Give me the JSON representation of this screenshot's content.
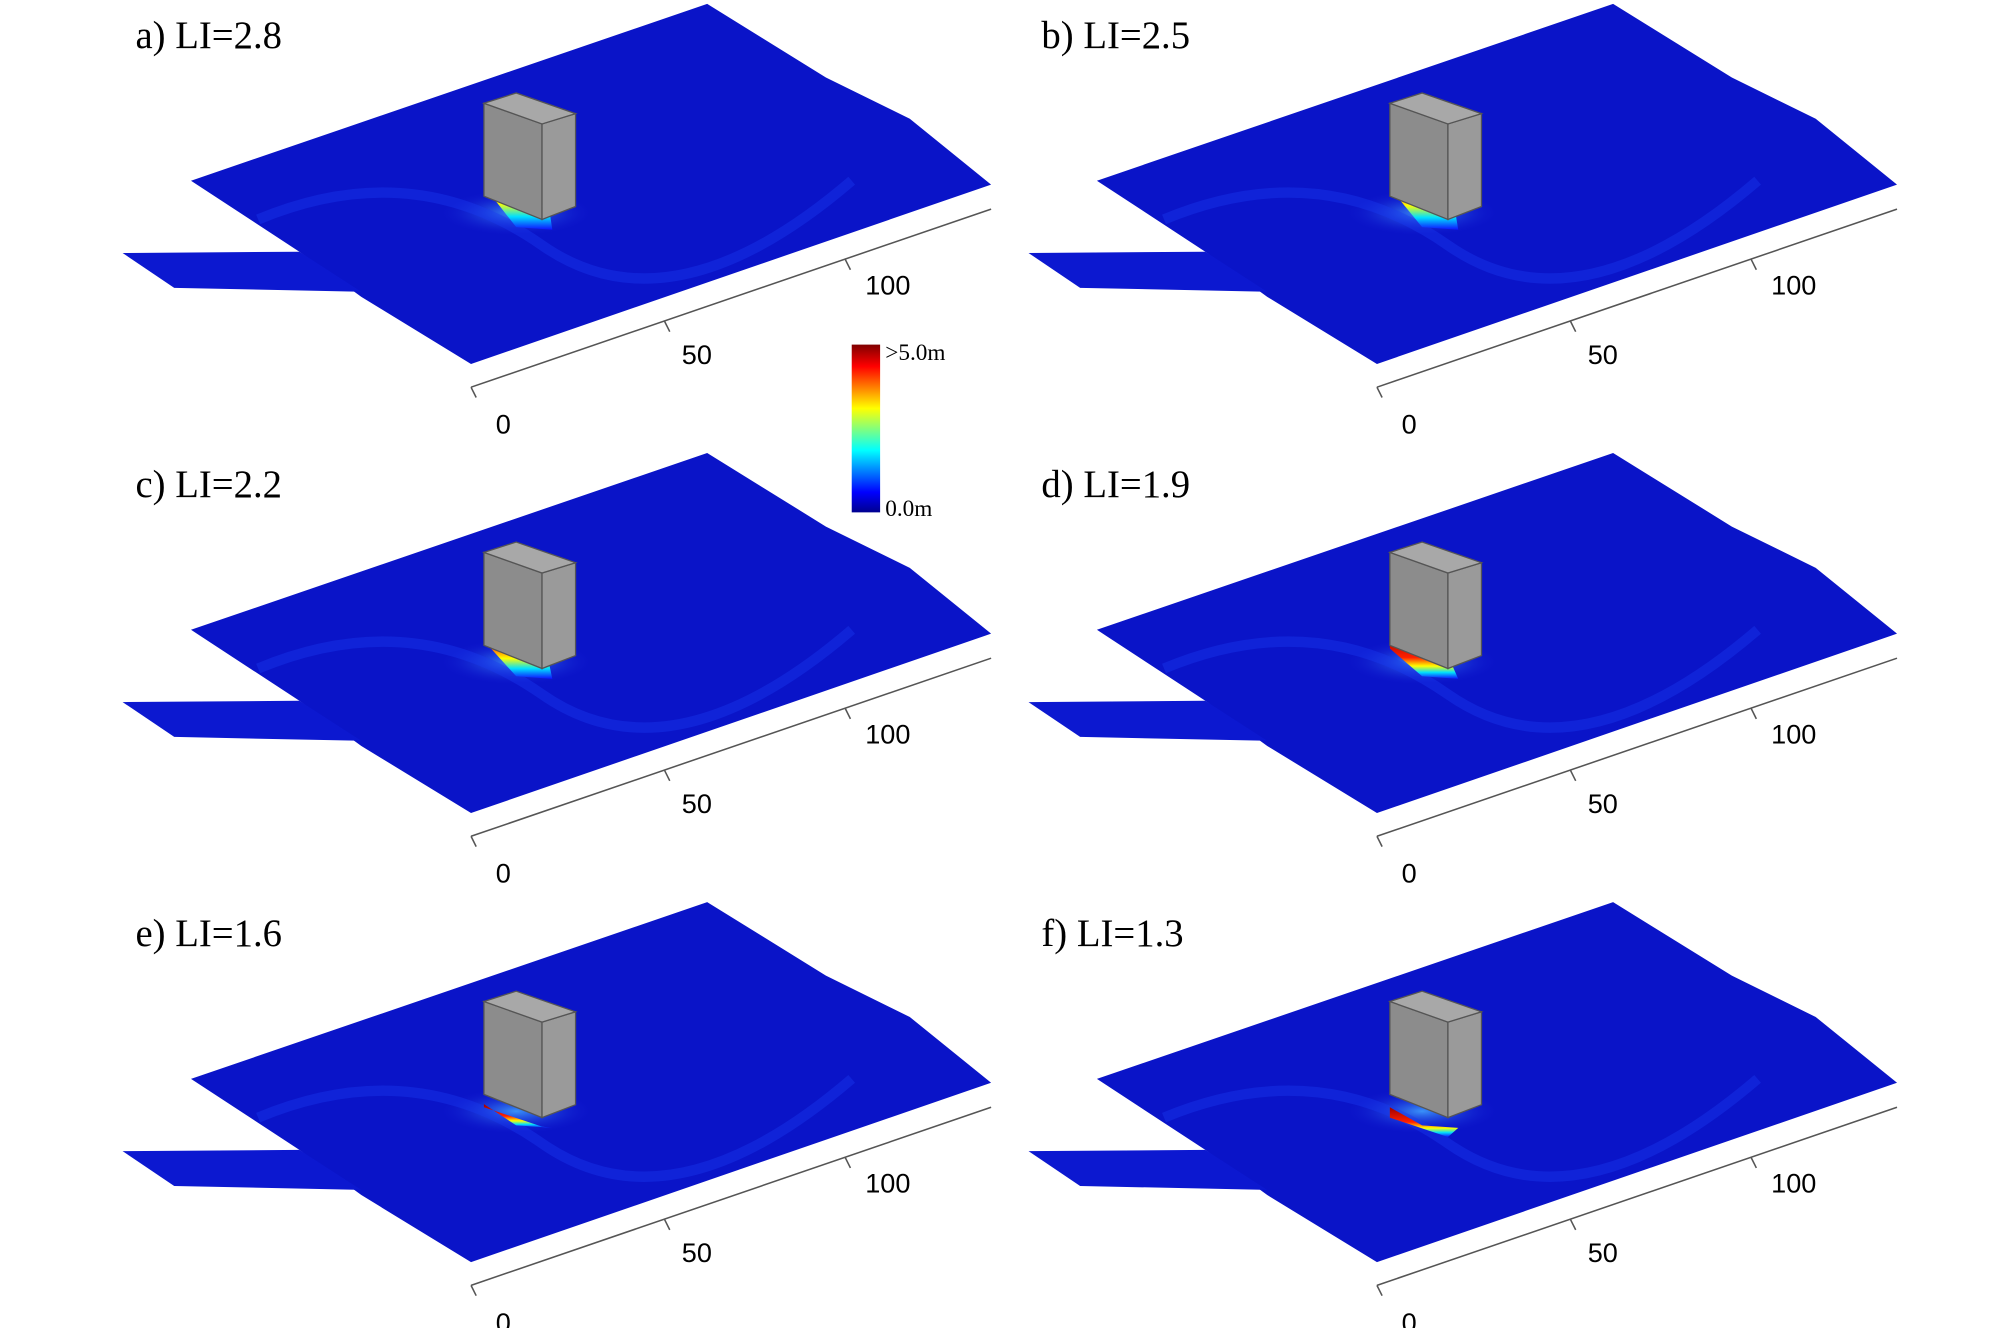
{
  "panels": [
    {
      "label": "a) LI=2.8",
      "ticks": [
        "0",
        "50",
        "100"
      ]
    },
    {
      "label": "b) LI=2.5",
      "ticks": [
        "0",
        "50",
        "100"
      ]
    },
    {
      "label": "c) LI=2.2",
      "ticks": [
        "0",
        "50",
        "100"
      ]
    },
    {
      "label": "d) LI=1.9",
      "ticks": [
        "0",
        "50",
        "100"
      ]
    },
    {
      "label": "e) LI=1.6",
      "ticks": [
        "0",
        "50",
        "100"
      ]
    },
    {
      "label": "f) LI=1.3",
      "ticks": [
        "0",
        "50",
        "100"
      ]
    }
  ],
  "colorbar": {
    "max_label": ">5.0m",
    "min_label": "0.0m"
  }
}
